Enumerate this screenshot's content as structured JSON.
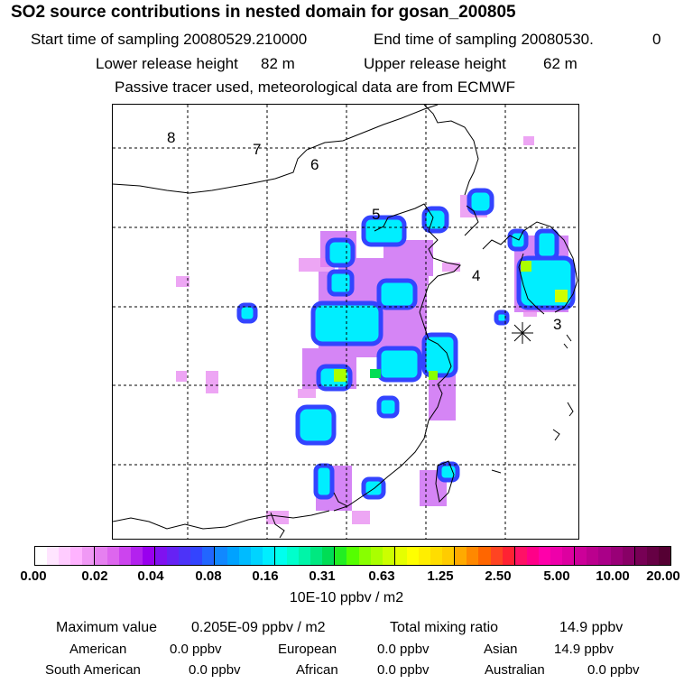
{
  "header": {
    "title": "SO2 source contributions in nested domain for gosan_200805",
    "start_label": "Start time of sampling 20080529.210000",
    "end_label": "End time of sampling 20080530.",
    "end_suffix": "0",
    "lower_label": "Lower release height",
    "lower_value": "82 m",
    "upper_label": "Upper release height",
    "upper_value": "62 m",
    "tracer_note": "Passive tracer used, meteorological data are from ECMWF"
  },
  "map": {
    "region_labels": [
      "8",
      "7",
      "6",
      "5",
      "4",
      "3"
    ],
    "receptor_marker": "station-asterisk"
  },
  "colorbar": {
    "tick_labels": [
      "0.00",
      "0.02",
      "0.04",
      "0.08",
      "0.16",
      "0.31",
      "0.63",
      "1.25",
      "2.50",
      "5.00",
      "10.00",
      "20.00"
    ],
    "colors": [
      "#ffffff",
      "#ffe5ff",
      "#ffccff",
      "#ffb3ff",
      "#f099f5",
      "#e680f0",
      "#dd66ee",
      "#cc44ee",
      "#b322ee",
      "#9900ee",
      "#8011f0",
      "#6622f4",
      "#4d33f8",
      "#3344ff",
      "#2266ff",
      "#1188ff",
      "#00a2ff",
      "#00bbff",
      "#00d4ff",
      "#00eeff",
      "#00ffee",
      "#00ffcc",
      "#00f5a8",
      "#00e880",
      "#00dd55",
      "#22ee22",
      "#55ff00",
      "#88ff00",
      "#aaff00",
      "#ccff00",
      "#e5ff00",
      "#ffff00",
      "#ffee00",
      "#ffdd00",
      "#ffcc00",
      "#ffaa00",
      "#ff8800",
      "#ff6600",
      "#ff4422",
      "#ff2233",
      "#ff1166",
      "#ff0088",
      "#ff00aa",
      "#ee00aa",
      "#dd00a0",
      "#cc0099",
      "#bb008e",
      "#aa0088",
      "#990077",
      "#880066",
      "#770055",
      "#660044",
      "#550033"
    ],
    "unit_label": "10E-10 ppbv / m2"
  },
  "summary": {
    "max_label": "Maximum value",
    "max_value": "0.205E-09 ppbv / m2",
    "total_label": "Total mixing ratio",
    "total_value": "14.9 ppbv",
    "regions": [
      {
        "name": "American",
        "value": "0.0 ppbv"
      },
      {
        "name": "European",
        "value": "0.0 ppbv"
      },
      {
        "name": "Asian",
        "value": "14.9 ppbv"
      },
      {
        "name": "South American",
        "value": "0.0 ppbv"
      },
      {
        "name": "African",
        "value": "0.0 ppbv"
      },
      {
        "name": "Australian",
        "value": "0.0 ppbv"
      }
    ]
  }
}
